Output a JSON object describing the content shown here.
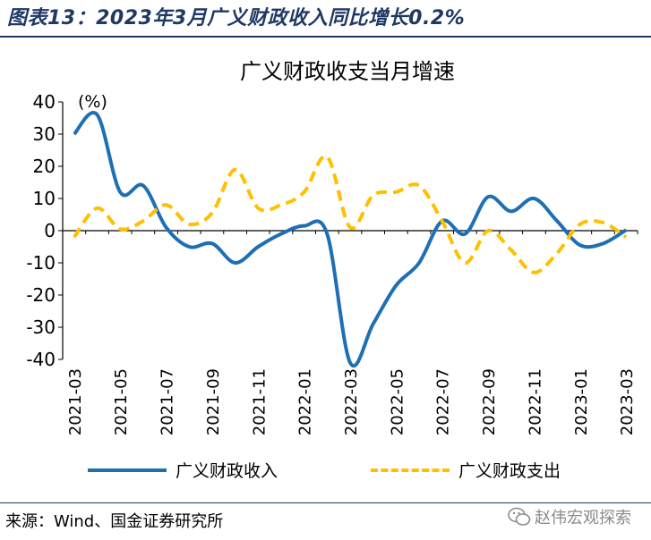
{
  "figure": {
    "title": "图表13：2023年3月广义财政收入同比增长0.2%",
    "source": "来源：Wind、国金证券研究所",
    "watermark": "赵伟宏观探索"
  },
  "colors": {
    "revenue": "#1f6fb5",
    "expenditure": "#ffc000",
    "axis": "#000000",
    "rule": "#1f3864"
  },
  "chart_data": {
    "type": "line",
    "title": "广义财政收支当月增速",
    "unit_label": "(%)",
    "ylim": [
      -40,
      40
    ],
    "yticks": [
      40,
      30,
      20,
      10,
      0,
      -10,
      -20,
      -30,
      -40
    ],
    "x": [
      "2021-03",
      "2021-04",
      "2021-05",
      "2021-06",
      "2021-07",
      "2021-08",
      "2021-09",
      "2021-10",
      "2021-11",
      "2021-12",
      "2022-01",
      "2022-02",
      "2022-03",
      "2022-04",
      "2022-05",
      "2022-06",
      "2022-07",
      "2022-08",
      "2022-09",
      "2022-10",
      "2022-11",
      "2022-12",
      "2023-01",
      "2023-02",
      "2023-03"
    ],
    "xtick_labels": [
      "2021-03",
      "2021-05",
      "2021-07",
      "2021-09",
      "2021-11",
      "2022-01",
      "2022-03",
      "2022-05",
      "2022-07",
      "2022-09",
      "2022-11",
      "2023-01",
      "2023-03"
    ],
    "series": [
      {
        "name": "广义财政收入",
        "style": "solid",
        "values": [
          30,
          36,
          12,
          14,
          1,
          -5,
          -4,
          -10,
          -5,
          -1,
          1.5,
          -1,
          -41,
          -29,
          -17,
          -10,
          3,
          -1,
          10.5,
          6,
          10,
          3,
          -4.5,
          -4,
          0.2
        ]
      },
      {
        "name": "广义财政支出",
        "style": "dashed",
        "values": [
          -2,
          7,
          0.5,
          3,
          8,
          2,
          5.5,
          19,
          7,
          8,
          12,
          23,
          1,
          11,
          12,
          14,
          3,
          -10,
          0,
          -6,
          -13,
          -7,
          2,
          2.5,
          -2
        ]
      }
    ],
    "grid": false,
    "legend_position": "bottom"
  }
}
